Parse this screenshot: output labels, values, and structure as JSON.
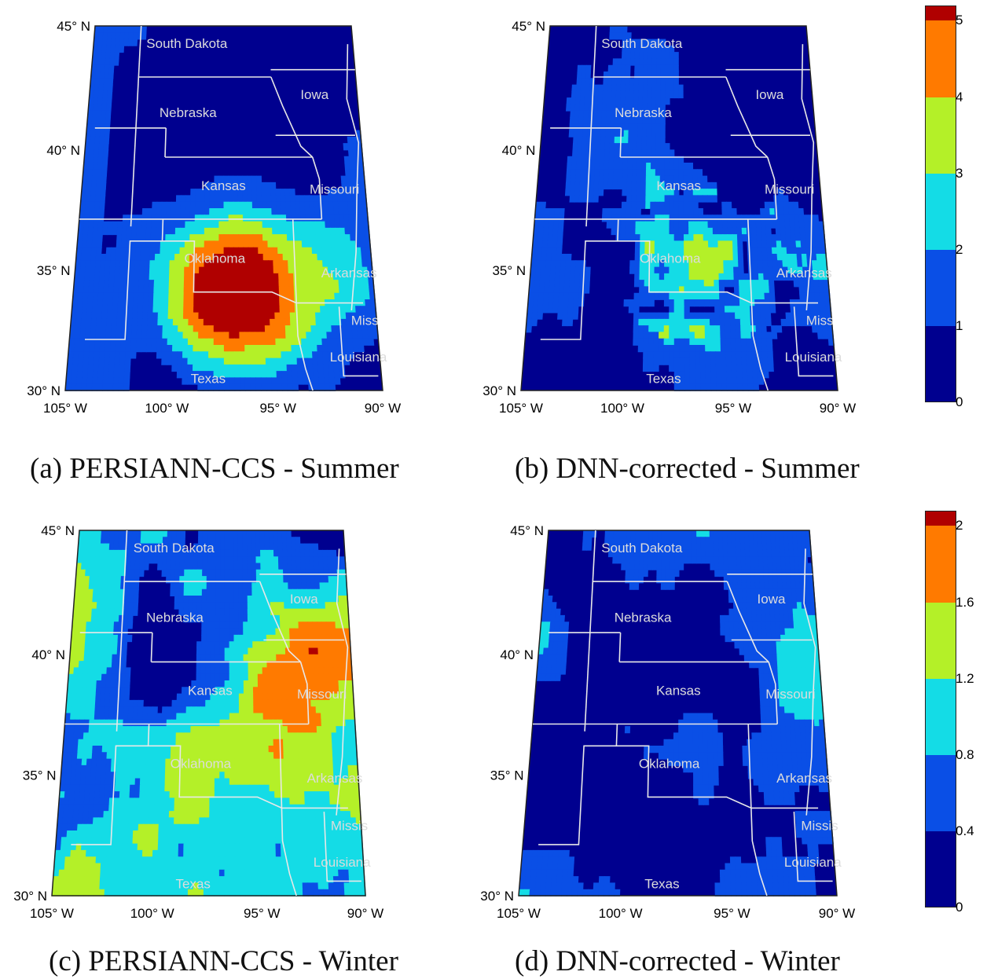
{
  "panels": [
    {
      "id": "a",
      "caption": "(a) PERSIANN-CCS - Summer",
      "season": "summer",
      "source": "PERSIANN-CCS",
      "intensity": "high",
      "lat_labels": [
        "45° N",
        "40° N",
        "35° N",
        "30° N"
      ],
      "lon_labels": [
        "105° W",
        "100° W",
        "95° W",
        "90° W"
      ],
      "states": [
        "South Dakota",
        "Iowa",
        "Nebraska",
        "Kansas",
        "Missouri",
        "Oklahoma",
        "Arkansas",
        "Texas",
        "Louisiana",
        "Miss"
      ]
    },
    {
      "id": "b",
      "caption": "(b) DNN-corrected - Summer",
      "season": "summer",
      "source": "DNN-corrected",
      "intensity": "medium",
      "lat_labels": [
        "45° N",
        "40° N",
        "35° N",
        "30° N"
      ],
      "lon_labels": [
        "105° W",
        "100° W",
        "95° W",
        "90° W"
      ],
      "states": [
        "South Dakota",
        "Iowa",
        "Nebraska",
        "Kansas",
        "Missouri",
        "Oklahoma",
        "Arkansas",
        "Texas",
        "Louisiana",
        "Miss"
      ]
    },
    {
      "id": "c",
      "caption": "(c) PERSIANN-CCS - Winter",
      "season": "winter",
      "source": "PERSIANN-CCS",
      "intensity": "low",
      "lat_labels": [
        "45° N",
        "40° N",
        "35° N",
        "30° N"
      ],
      "lon_labels": [
        "105° W",
        "100° W",
        "95° W",
        "90° W"
      ],
      "states": [
        "South Dakota",
        "Iowa",
        "Nebraska",
        "Kansas",
        "Missouri",
        "Oklahoma",
        "Arkansas",
        "Texas",
        "Louisiana",
        "Missis"
      ]
    },
    {
      "id": "d",
      "caption": "(d) DNN-corrected - Winter",
      "season": "winter",
      "source": "DNN-corrected",
      "intensity": "verylow",
      "lat_labels": [
        "45° N",
        "40° N",
        "35° N",
        "30° N"
      ],
      "lon_labels": [
        "105° W",
        "100° W",
        "95° W",
        "90° W"
      ],
      "states": [
        "South Dakota",
        "Iowa",
        "Nebraska",
        "Kansas",
        "Missouri",
        "Oklahoma",
        "Arkansas",
        "Texas",
        "Louisiana",
        "Missis"
      ]
    }
  ],
  "colorbars": [
    {
      "id": "summer",
      "ticks": [
        "0",
        "1",
        "2",
        "3",
        "4",
        "5"
      ],
      "min": 0,
      "max": 5.2
    },
    {
      "id": "winter",
      "ticks": [
        "0",
        "0.4",
        "0.8",
        "1.2",
        "1.6",
        "2"
      ],
      "min": 0,
      "max": 2.08
    }
  ],
  "colors": {
    "c0": "#00008f",
    "c1": "#0a4fe6",
    "c2": "#14dce6",
    "c3": "#b4f028",
    "c4": "#ff7a00",
    "c5": "#b00000",
    "boundary": "#e8e8e8"
  }
}
